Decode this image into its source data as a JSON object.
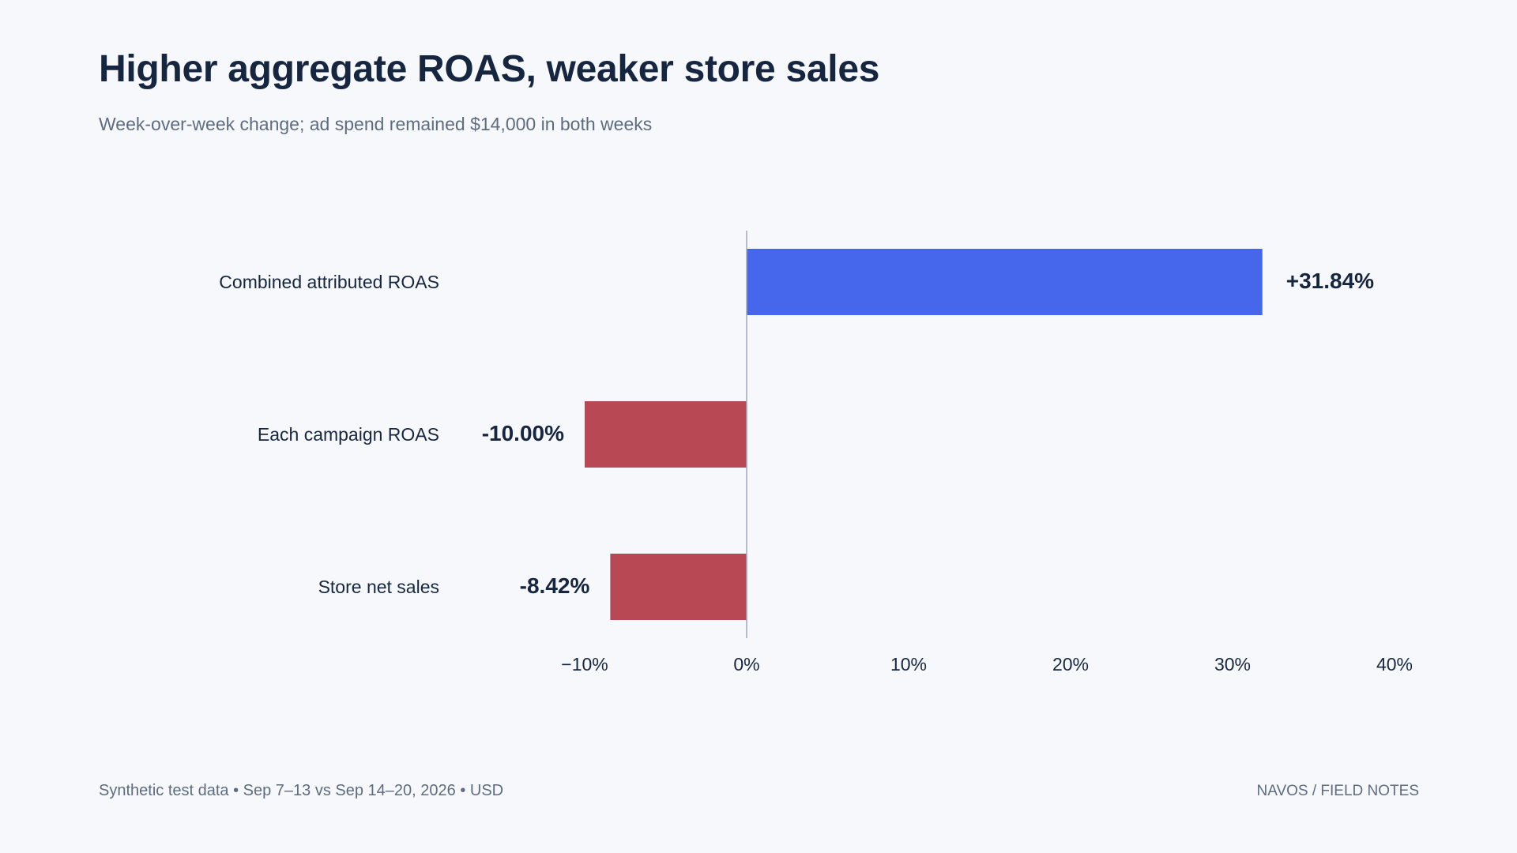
{
  "header": {
    "title": "Higher aggregate ROAS, weaker store sales",
    "subtitle": "Week-over-week change; ad spend remained $14,000 in both weeks"
  },
  "footer": {
    "source": "Synthetic test data • Sep 7–13 vs Sep 14–20, 2026 • USD",
    "brand": "NAVOS / FIELD NOTES"
  },
  "colors": {
    "positive": "#4666ec",
    "negative": "#b84854",
    "axis": "#9aa8bd"
  },
  "chart_data": {
    "type": "bar",
    "orientation": "horizontal",
    "title": "Higher aggregate ROAS, weaker store sales",
    "subtitle": "Week-over-week change; ad spend remained $14,000 in both weeks",
    "categories": [
      "Combined attributed ROAS",
      "Each campaign ROAS",
      "Store net sales"
    ],
    "values": [
      31.84,
      -10.0,
      -8.42
    ],
    "value_labels": [
      "+31.84%",
      "-10.00%",
      "-8.42%"
    ],
    "unit": "%",
    "xlim": [
      -10,
      40
    ],
    "xticks": [
      -10,
      0,
      10,
      20,
      30,
      40
    ],
    "xtick_labels": [
      "−10%",
      "0%",
      "10%",
      "20%",
      "30%",
      "40%"
    ],
    "grid": false,
    "legend": "none"
  }
}
